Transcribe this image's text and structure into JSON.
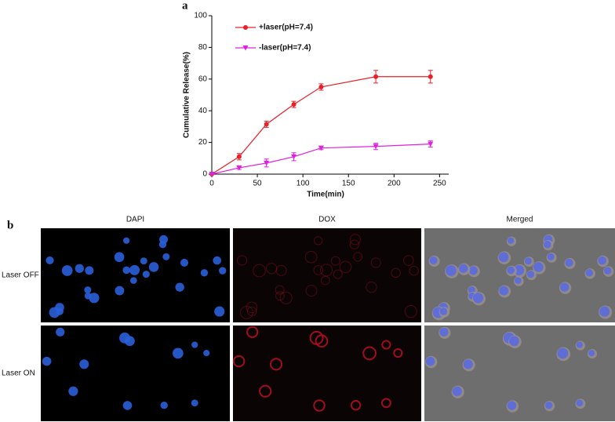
{
  "panel_labels": [
    "a",
    "b"
  ],
  "chart_data": {
    "type": "line",
    "x_label": "Time(min)",
    "y_label": "Cumulative Release(%)",
    "x": [
      0,
      30,
      60,
      90,
      120,
      180,
      240
    ],
    "series": [
      {
        "name": "+laser(pH=7.4)",
        "color": "#e8202a",
        "marker": "circle",
        "values": [
          0,
          11,
          31.5,
          44,
          55,
          61.5,
          61.5
        ],
        "errors": [
          0,
          2,
          2,
          2,
          2,
          4,
          4
        ]
      },
      {
        "name": "-laser(pH=7.4)",
        "color": "#e020e0",
        "marker": "triangle-down",
        "values": [
          0,
          4,
          7,
          11,
          16.5,
          17.5,
          19
        ],
        "errors": [
          0,
          1,
          2.5,
          2.5,
          1,
          2,
          2
        ]
      }
    ],
    "xlim": [
      0,
      260
    ],
    "xticks": [
      0,
      50,
      100,
      150,
      200,
      250
    ],
    "ylim": [
      0,
      100
    ],
    "yticks": [
      0,
      20,
      40,
      60,
      80,
      100
    ],
    "legend": "upper left",
    "grid": false
  },
  "micrographs": {
    "columns": [
      "DAPI",
      "DOX",
      "Merged"
    ],
    "rows": [
      "Laser OFF",
      "Laser ON"
    ]
  }
}
